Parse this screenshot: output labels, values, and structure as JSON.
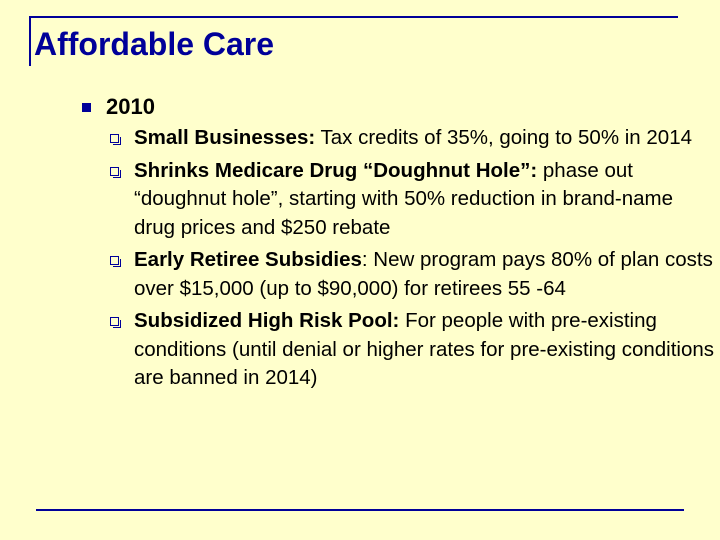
{
  "slide": {
    "title": "Affordable Care",
    "level1": "2010",
    "items": [
      {
        "heading": "Small Businesses:",
        "body": " Tax credits of 35%, going to 50% in 2014"
      },
      {
        "heading": "Shrinks Medicare Drug “Doughnut Hole”:",
        "body": " phase out “doughnut hole”, starting with 50% reduction in brand-name drug prices and $250 rebate"
      },
      {
        "heading": "Early Retiree Subsidies",
        "body": ": New program pays 80% of plan costs over $15,000 (up to $90,000) for retirees 55 -64"
      },
      {
        "heading": "Subsidized High Risk Pool:",
        "body": " For people with pre-existing conditions (until denial or higher rates for pre-existing conditions are banned in 2014)"
      }
    ]
  },
  "colors": {
    "background": "#ffffcc",
    "accent": "#000099",
    "text": "#000000"
  },
  "icons": {
    "level1_bullet": "filled-square-icon",
    "level2_bullet": "hollow-square-icon"
  }
}
